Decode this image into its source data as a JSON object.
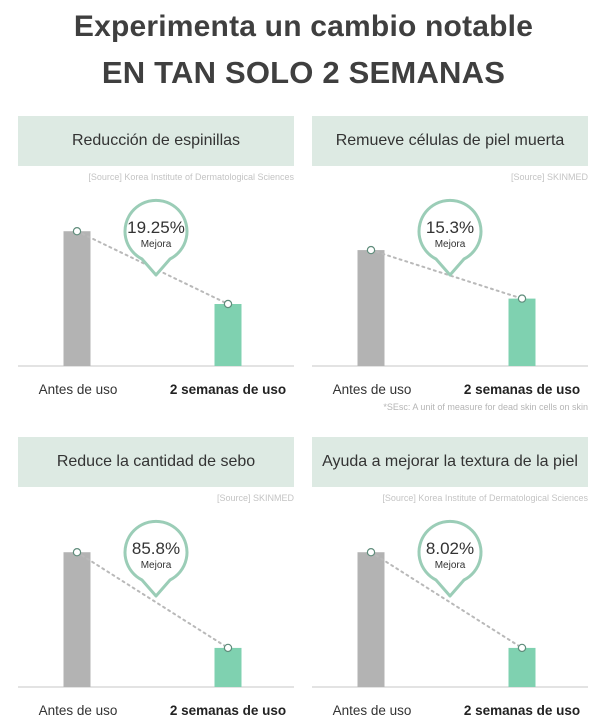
{
  "header": {
    "line1": "Experimenta un cambio notable",
    "line2": "EN TAN SOLO 2 SEMANAS"
  },
  "colors": {
    "bar_before": "#b3b3b3",
    "bar_after": "#7fd1b0",
    "title_bg": "#ddeae3",
    "bubble_border": "#9bcdb7",
    "axis": "#d2d2d2",
    "dotted_line": "#b9b9b9"
  },
  "chart_data": [
    {
      "type": "bar",
      "title": "Reducción de espinillas",
      "source": "[Source] Korea Institute of Dermatological Sciences",
      "categories": [
        "Antes de uso",
        "2 semanas de uso"
      ],
      "values": [
        100,
        46
      ],
      "ylim": [
        0,
        115
      ],
      "bubble_value": "19.25%",
      "bubble_label": "Mejora"
    },
    {
      "type": "bar",
      "title": "Remueve células de piel muerta",
      "source": "[Source] SKINMED",
      "categories": [
        "Antes de uso",
        "2 semanas de uso"
      ],
      "values": [
        86,
        50
      ],
      "ylim": [
        0,
        115
      ],
      "bubble_value": "15.3%",
      "bubble_label": "Mejora",
      "note": "*SEsc: A unit of measure for dead skin cells on skin"
    },
    {
      "type": "bar",
      "title": "Reduce la cantidad de sebo",
      "source": "[Source] SKINMED",
      "categories": [
        "Antes de uso",
        "2 semanas de uso"
      ],
      "values": [
        100,
        29
      ],
      "ylim": [
        0,
        115
      ],
      "bubble_value": "85.8%",
      "bubble_label": "Mejora"
    },
    {
      "type": "bar",
      "title": "Ayuda a mejorar la textura de la piel",
      "source": "[Source] Korea Institute of Dermatological Sciences",
      "categories": [
        "Antes de uso",
        "2 semanas de uso"
      ],
      "values": [
        100,
        29
      ],
      "ylim": [
        0,
        115
      ],
      "bubble_value": "8.02%",
      "bubble_label": "Mejora"
    }
  ]
}
